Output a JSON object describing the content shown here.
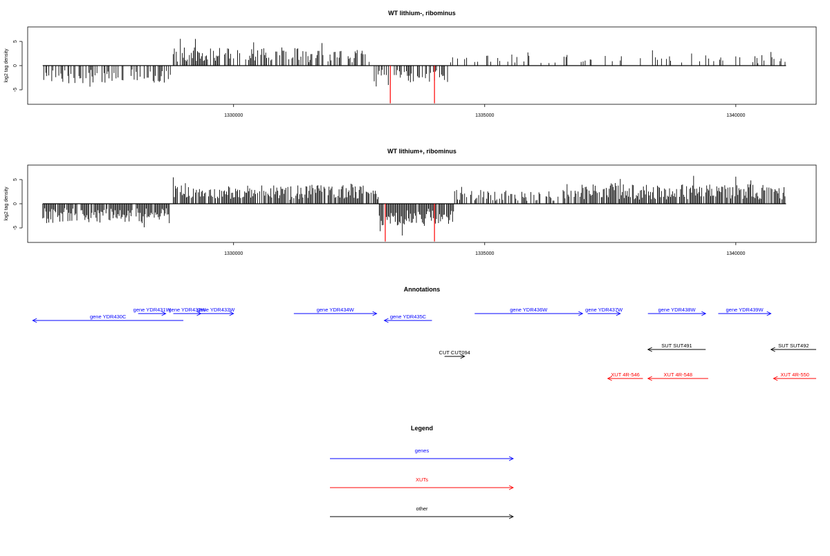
{
  "chart_data": [
    {
      "type": "bar",
      "title": "WT lithium-, ribominus",
      "ylabel": "log2 tag density",
      "xlim": [
        1325900,
        1341600
      ],
      "ylim": [
        -8,
        8
      ],
      "yticks": [
        -5,
        0,
        5
      ],
      "xticks": [
        1330000,
        1335000,
        1340000
      ],
      "tick_labels": [
        "1330000",
        "1335000",
        "1340000"
      ],
      "series_color": "#000000",
      "highlight_color": "#ff0000",
      "segments": [
        {
          "start": 1326200,
          "end": 1328750,
          "sign": -1,
          "level": 3.2,
          "density": 0.55
        },
        {
          "start": 1328800,
          "end": 1331300,
          "sign": 1,
          "level": 3.3,
          "density": 0.65
        },
        {
          "start": 1331300,
          "end": 1332800,
          "sign": 1,
          "level": 2.8,
          "density": 0.5
        },
        {
          "start": 1332800,
          "end": 1334300,
          "sign": -1,
          "level": 3.0,
          "density": 0.55
        },
        {
          "start": 1334300,
          "end": 1341000,
          "sign": 1,
          "level": 2.0,
          "density": 0.18
        }
      ],
      "highlights": [
        {
          "x": 1333120,
          "value": -7.8
        },
        {
          "x": 1334000,
          "value": -7.8
        }
      ]
    },
    {
      "type": "bar",
      "title": "WT lithium+, ribominus",
      "ylabel": "log2 tag density",
      "xlim": [
        1325900,
        1341600
      ],
      "ylim": [
        -8,
        8
      ],
      "yticks": [
        -5,
        0,
        5
      ],
      "xticks": [
        1330000,
        1335000,
        1340000
      ],
      "tick_labels": [
        "1330000",
        "1335000",
        "1340000"
      ],
      "series_color": "#000000",
      "highlight_color": "#ff0000",
      "segments": [
        {
          "start": 1326200,
          "end": 1328750,
          "sign": -1,
          "level": 3.5,
          "density": 0.9
        },
        {
          "start": 1328800,
          "end": 1331500,
          "sign": 1,
          "level": 3.3,
          "density": 0.85
        },
        {
          "start": 1331500,
          "end": 1332900,
          "sign": 1,
          "level": 3.5,
          "density": 0.9
        },
        {
          "start": 1332900,
          "end": 1334400,
          "sign": -1,
          "level": 4.0,
          "density": 0.95
        },
        {
          "start": 1334400,
          "end": 1336900,
          "sign": 1,
          "level": 2.5,
          "density": 0.55
        },
        {
          "start": 1336900,
          "end": 1341000,
          "sign": 1,
          "level": 3.5,
          "density": 0.85
        }
      ],
      "highlights": [
        {
          "x": 1333020,
          "value": -7.8
        },
        {
          "x": 1334000,
          "value": -7.8
        }
      ]
    }
  ],
  "annotations": {
    "title": "Annotations",
    "items": [
      {
        "label": "gene YDR430C",
        "kind": "gene",
        "start": 1326000,
        "end": 1329000,
        "dir": "left",
        "row": 1
      },
      {
        "label": "gene YDR431W",
        "kind": "gene",
        "start": 1328100,
        "end": 1328650,
        "dir": "right",
        "row": 0
      },
      {
        "label": "gene YDR432W",
        "kind": "gene",
        "start": 1328800,
        "end": 1329350,
        "dir": "right",
        "row": 0
      },
      {
        "label": "gene YDR433W",
        "kind": "gene",
        "start": 1329300,
        "end": 1330000,
        "dir": "right",
        "row": 0
      },
      {
        "label": "gene YDR434W",
        "kind": "gene",
        "start": 1331200,
        "end": 1332850,
        "dir": "right",
        "row": 0
      },
      {
        "label": "gene YDR435C",
        "kind": "gene",
        "start": 1333000,
        "end": 1333950,
        "dir": "left",
        "row": 1
      },
      {
        "label": "gene YDR436W",
        "kind": "gene",
        "start": 1334800,
        "end": 1336950,
        "dir": "right",
        "row": 0
      },
      {
        "label": "gene YDR437W",
        "kind": "gene",
        "start": 1337050,
        "end": 1337700,
        "dir": "right",
        "row": 0
      },
      {
        "label": "gene YDR438W",
        "kind": "gene",
        "start": 1338250,
        "end": 1339400,
        "dir": "right",
        "row": 0
      },
      {
        "label": "gene YDR439W",
        "kind": "gene",
        "start": 1339650,
        "end": 1340700,
        "dir": "right",
        "row": 0
      },
      {
        "label": "CUT CUT094",
        "kind": "other",
        "start": 1334200,
        "end": 1334600,
        "dir": "right",
        "row": 2
      },
      {
        "label": "SUT SUT491",
        "kind": "other",
        "start": 1338250,
        "end": 1339400,
        "dir": "left",
        "row": 3
      },
      {
        "label": "SUT SUT492",
        "kind": "other",
        "start": 1340700,
        "end": 1341600,
        "dir": "left",
        "row": 3
      },
      {
        "label": "XUT 4R-546",
        "kind": "xut",
        "start": 1337450,
        "end": 1338150,
        "dir": "left",
        "row": 4
      },
      {
        "label": "XUT 4R-548",
        "kind": "xut",
        "start": 1338250,
        "end": 1339450,
        "dir": "left",
        "row": 4
      },
      {
        "label": "XUT 4R-550",
        "kind": "xut",
        "start": 1340750,
        "end": 1341600,
        "dir": "left",
        "row": 4
      }
    ]
  },
  "legend": {
    "title": "Legend",
    "items": [
      {
        "label": "genes",
        "color": "#0000ff"
      },
      {
        "label": "XUTs",
        "color": "#ff0000"
      },
      {
        "label": "other",
        "color": "#000000"
      }
    ]
  },
  "colors": {
    "gene": "#0000ff",
    "xut": "#ff0000",
    "other": "#000000"
  }
}
